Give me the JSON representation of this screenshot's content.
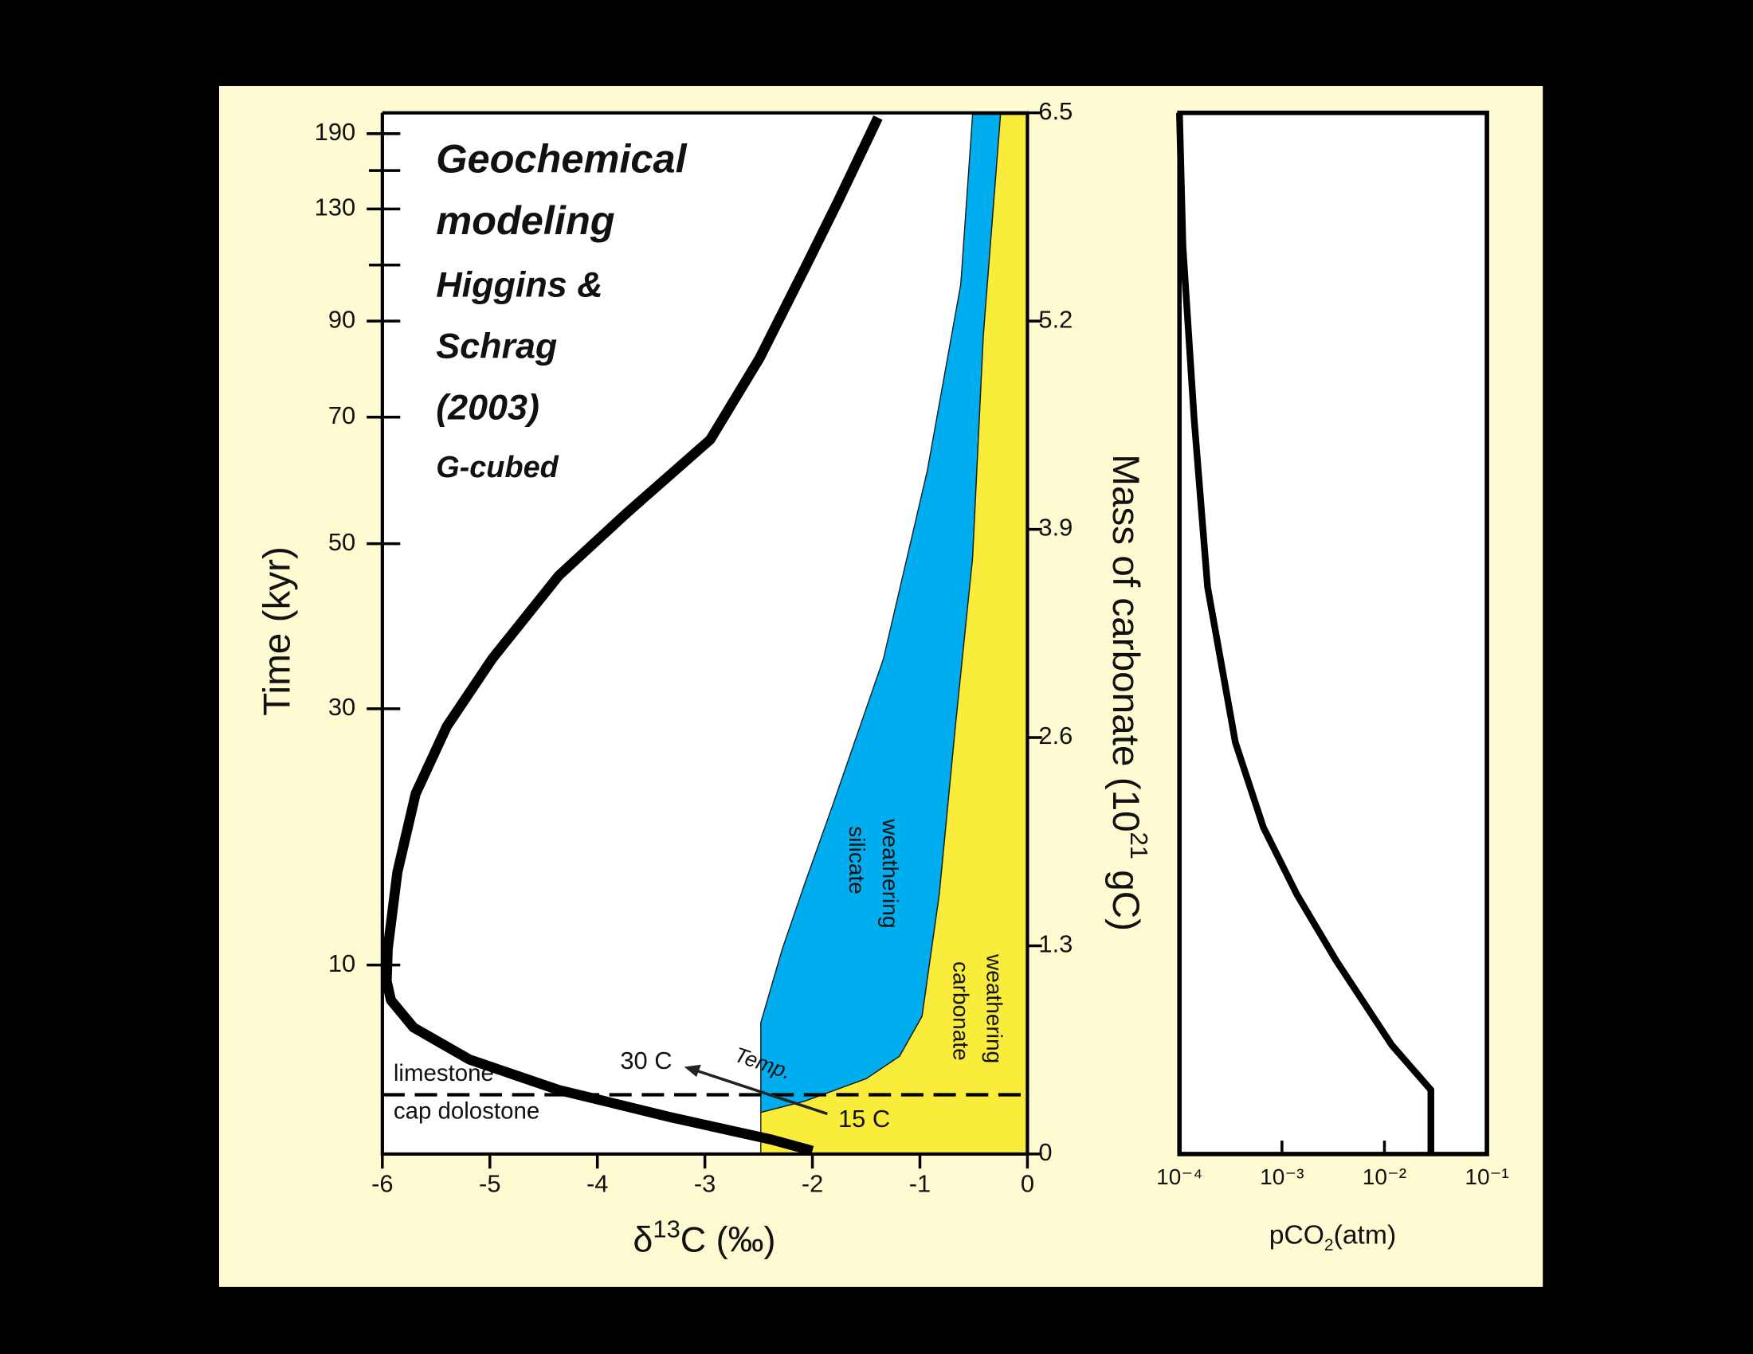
{
  "chart_data": [
    {
      "type": "line",
      "title_lines": [
        "Geochemical",
        "modeling",
        "Higgins &",
        "Schrag",
        "(2003)",
        "G-cubed"
      ],
      "xlabel": {
        "prefix": "δ",
        "sup": "13",
        "suffix": "C (‰)"
      },
      "time_label": "Time (kyr)",
      "ylabel": {
        "prefix": "Mass of carbonate (10",
        "sup": "21",
        "suffix": " gC)"
      },
      "xlim": [
        -6,
        0
      ],
      "xticks": [
        -6,
        -5,
        -4,
        -3,
        -2,
        -1,
        0
      ],
      "ylim": [
        0,
        6.5
      ],
      "yticks": [
        0,
        1.3,
        2.6,
        3.9,
        5.2,
        6.5
      ],
      "time_ticks": [
        {
          "value": 1.18,
          "label": "10"
        },
        {
          "value": 2.78,
          "label": "30"
        },
        {
          "value": 3.81,
          "label": "50"
        },
        {
          "value": 4.6,
          "label": "70"
        },
        {
          "value": 5.2,
          "label": "90"
        },
        {
          "value": 5.9,
          "label": "130"
        },
        {
          "value": 6.37,
          "label": "190"
        }
      ],
      "time_minor_ticks": [
        5.55,
        6.14
      ],
      "series": [
        {
          "color": "#000000",
          "x": [
            -2.0,
            -2.38,
            -3.32,
            -4.36,
            -5.19,
            -5.71,
            -5.92,
            -5.96,
            -5.95,
            -5.86,
            -5.69,
            -5.4,
            -4.98,
            -4.36,
            -3.73,
            -2.95,
            -2.49,
            -2.07,
            -1.76,
            -1.39
          ],
          "y": [
            0.02,
            0.09,
            0.23,
            0.4,
            0.59,
            0.79,
            0.96,
            1.08,
            1.28,
            1.76,
            2.25,
            2.67,
            3.09,
            3.61,
            4.0,
            4.46,
            4.97,
            5.53,
            5.95,
            6.47
          ]
        }
      ],
      "areas": [
        {
          "label": [
            "silicate",
            "weathering"
          ],
          "color": "#00aeef",
          "x": [
            -2.48,
            -2.48,
            -2.28,
            -2.07,
            -1.81,
            -1.34,
            -0.93,
            -0.62,
            -0.51,
            -0.25,
            -0.41,
            -0.51,
            -0.67,
            -0.82,
            -0.98,
            -1.19,
            -1.5,
            -2.07
          ],
          "y": [
            0.26,
            0.82,
            1.28,
            1.69,
            2.18,
            3.09,
            4.27,
            5.43,
            6.49,
            6.49,
            5.11,
            3.72,
            2.67,
            1.62,
            0.86,
            0.61,
            0.47,
            0.33
          ]
        },
        {
          "label": [
            "carbonate",
            "weathering"
          ],
          "color": "#f9ec3b",
          "x": [
            -2.48,
            -2.48,
            -2.07,
            -1.5,
            -1.19,
            -0.98,
            -0.82,
            -0.67,
            -0.51,
            -0.41,
            -0.25,
            0,
            0
          ],
          "y": [
            0,
            0.26,
            0.33,
            0.47,
            0.61,
            0.86,
            1.62,
            2.67,
            3.72,
            5.11,
            6.49,
            6.49,
            0
          ]
        }
      ],
      "boundary": {
        "y": 0.37,
        "above": "limestone",
        "below": "cap dolostone"
      },
      "temp": {
        "label": "Temp.",
        "start": "15 C",
        "end": "30 C"
      }
    },
    {
      "type": "line",
      "xscale": "log",
      "xlabel": {
        "prefix": "pCO",
        "sub": "2",
        "suffix": "(atm)"
      },
      "xlim": [
        0.0001,
        0.1
      ],
      "xticks": [
        {
          "value": 0.0001,
          "label": "10⁻⁴"
        },
        {
          "value": 0.001,
          "label": "10⁻³"
        },
        {
          "value": 0.01,
          "label": "10⁻²"
        },
        {
          "value": 0.1,
          "label": "10⁻¹"
        }
      ],
      "ylim": [
        0,
        6.5
      ],
      "series": [
        {
          "color": "#000000",
          "x": [
            0.0284,
            0.0284,
            0.0118,
            0.00336,
            0.0014,
            0.000658,
            0.000351,
            0.000188,
            0.000139,
            0.000108,
            0.0001
          ],
          "y": [
            0,
            0.4,
            0.68,
            1.21,
            1.62,
            2.04,
            2.57,
            3.54,
            4.59,
            5.67,
            6.5
          ]
        }
      ]
    }
  ]
}
